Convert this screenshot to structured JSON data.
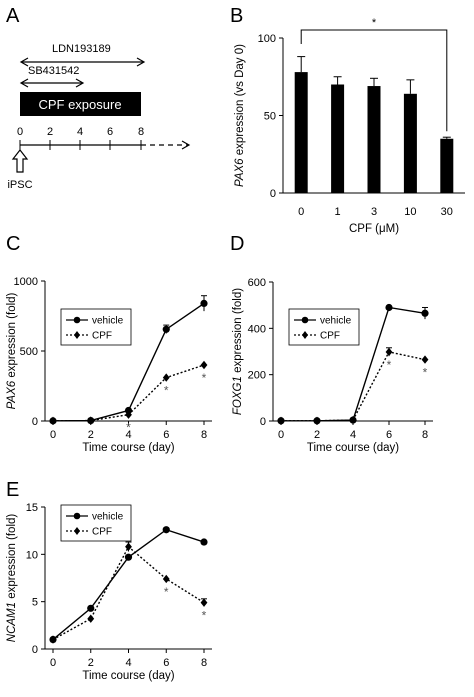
{
  "panels": {
    "A": {
      "label": "A",
      "ldn": "LDN193189",
      "sb": "SB431542",
      "exposure": "CPF exposure",
      "ticks": [
        "0",
        "2",
        "4",
        "6",
        "8"
      ],
      "cell": "iPSC"
    },
    "B": {
      "label": "B"
    },
    "C": {
      "label": "C"
    },
    "D": {
      "label": "D"
    },
    "E": {
      "label": "E"
    }
  },
  "chart_data": [
    {
      "panel": "B",
      "type": "bar",
      "categories": [
        "0",
        "1",
        "3",
        "10",
        "30"
      ],
      "values": [
        78,
        70,
        69,
        64,
        35
      ],
      "errors": [
        10,
        5,
        5,
        9,
        1
      ],
      "ylabel_italic": "PAX6",
      "ylabel_rest": " expression (vs Day 0)",
      "xlabel": "CPF (μM)",
      "ylim": [
        0,
        100
      ],
      "yticks": [
        "0",
        "50",
        "100"
      ],
      "significance": "*",
      "color": "#000000"
    },
    {
      "panel": "C",
      "type": "line",
      "x": [
        0,
        2,
        4,
        6,
        8
      ],
      "xticks": [
        "0",
        "2",
        "4",
        "6",
        "8"
      ],
      "xlabel": "Time course (day)",
      "ylabel_italic": "PAX6",
      "ylabel_rest": " expression (fold)",
      "ylim": [
        0,
        1000
      ],
      "yticks": [
        "0",
        "500",
        "1000"
      ],
      "legend": "top-left",
      "series": [
        {
          "name": "vehicle",
          "values": [
            1,
            3,
            75,
            655,
            840
          ],
          "errors": [
            0,
            0,
            0,
            30,
            55
          ],
          "style": "solid",
          "marker": "circle"
        },
        {
          "name": "CPF",
          "values": [
            1,
            3,
            45,
            310,
            400
          ],
          "errors": [
            0,
            0,
            0,
            0,
            0
          ],
          "style": "dotted",
          "marker": "diamond",
          "stars": [
            4,
            6,
            8
          ]
        }
      ]
    },
    {
      "panel": "D",
      "type": "line",
      "x": [
        0,
        2,
        4,
        6,
        8
      ],
      "xticks": [
        "0",
        "2",
        "4",
        "6",
        "8"
      ],
      "xlabel": "Time course (day)",
      "ylabel_italic": "FOXG1",
      "ylabel_rest": " expression (fold)",
      "ylim": [
        0,
        600
      ],
      "yticks": [
        "0",
        "200",
        "400",
        "600"
      ],
      "legend": "top-left",
      "series": [
        {
          "name": "vehicle",
          "values": [
            1,
            1,
            4,
            490,
            465
          ],
          "errors": [
            0,
            0,
            0,
            0,
            25
          ],
          "style": "solid",
          "marker": "circle"
        },
        {
          "name": "CPF",
          "values": [
            1,
            1,
            4,
            298,
            265
          ],
          "errors": [
            0,
            0,
            0,
            18,
            0
          ],
          "style": "dotted",
          "marker": "diamond",
          "stars": [
            6,
            8
          ]
        }
      ]
    },
    {
      "panel": "E",
      "type": "line",
      "x": [
        0,
        2,
        4,
        6,
        8
      ],
      "xticks": [
        "0",
        "2",
        "4",
        "6",
        "8"
      ],
      "xlabel": "Time course (day)",
      "ylabel_italic": "NCAM1",
      "ylabel_rest": " expression (fold)",
      "ylim": [
        0,
        15
      ],
      "yticks": [
        "0",
        "5",
        "10",
        "15"
      ],
      "legend": "top-left",
      "series": [
        {
          "name": "vehicle",
          "values": [
            1,
            4.3,
            9.7,
            12.6,
            11.3
          ],
          "errors": [
            0,
            0,
            0,
            0,
            0
          ],
          "style": "solid",
          "marker": "circle"
        },
        {
          "name": "CPF",
          "values": [
            1,
            3.2,
            10.8,
            7.4,
            4.9
          ],
          "errors": [
            0,
            0,
            0.5,
            0,
            0.4
          ],
          "style": "dotted",
          "marker": "diamond",
          "stars": [
            6,
            8
          ]
        }
      ]
    }
  ]
}
